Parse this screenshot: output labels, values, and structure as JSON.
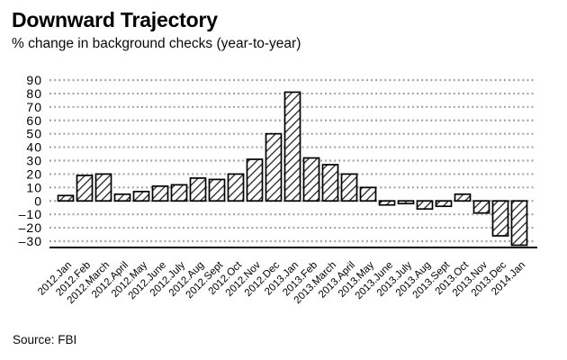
{
  "header": {
    "title": "Downward Trajectory",
    "subtitle": "% change in background checks (year-to-year)"
  },
  "footer": {
    "source": "Source: FBI"
  },
  "chart_data": {
    "type": "bar",
    "title": "Downward Trajectory",
    "subtitle": "% change in background checks (year-to-year)",
    "source": "Source: FBI",
    "categories": [
      "2012.Jan",
      "2012.Feb",
      "2012.March",
      "2012.April",
      "2012.May",
      "2012.June",
      "2012.July",
      "2012.Aug",
      "2012.Sept",
      "2012.Oct",
      "2012.Nov",
      "2012.Dec",
      "2013.Jan",
      "2013.Feb",
      "2013.March",
      "2013.April",
      "2013.May",
      "2013.June",
      "2013.July",
      "2013.Aug",
      "2013.Sept",
      "2013.Oct",
      "2013.Nov",
      "2013.Dec",
      "2014.Jan"
    ],
    "values": [
      4,
      19,
      20,
      5,
      7,
      11,
      12,
      17,
      16,
      20,
      31,
      50,
      81,
      32,
      27,
      20,
      10,
      -3,
      -2,
      -6,
      -4,
      5,
      -9,
      -26,
      -33
    ],
    "xlabel": "",
    "ylabel": "",
    "ylim": [
      -30,
      90
    ],
    "ytick_step": 10,
    "grid": "dotted horizontal gridlines, no vertical axis line, solid bottom baseline",
    "legend": "none",
    "bar_style": "white fill with black diagonal hatch lines and black outline",
    "colors": {
      "background": "#ffffff",
      "bar_fill": "#ffffff",
      "bar_hatch": "#000000",
      "bar_outline": "#000000",
      "gridline": "#a4a4a4",
      "axis_line": "#000000",
      "text": "#000000"
    }
  }
}
